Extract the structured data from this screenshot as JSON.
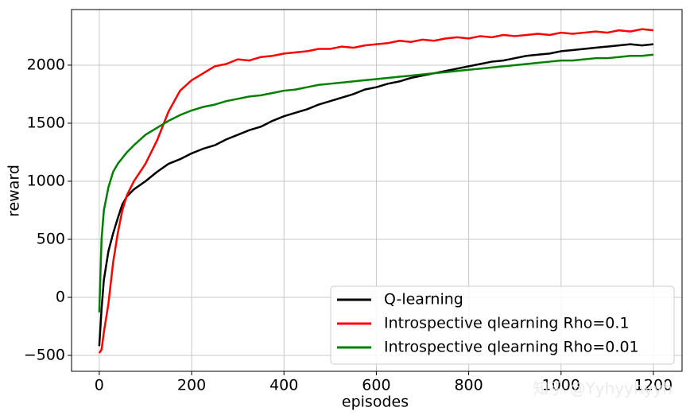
{
  "chart_data": {
    "type": "line",
    "xlabel": "episodes",
    "ylabel": "reward",
    "x": [
      0,
      5,
      10,
      20,
      30,
      40,
      50,
      60,
      75,
      100,
      125,
      150,
      175,
      200,
      225,
      250,
      275,
      300,
      325,
      350,
      375,
      400,
      425,
      450,
      475,
      500,
      525,
      550,
      575,
      600,
      625,
      650,
      675,
      700,
      725,
      750,
      775,
      800,
      825,
      850,
      875,
      900,
      925,
      950,
      975,
      1000,
      1025,
      1050,
      1075,
      1100,
      1125,
      1150,
      1175,
      1200
    ],
    "series": [
      {
        "name": "Q-learning",
        "color": "#000000",
        "values": [
          -420,
          -100,
          150,
          400,
          550,
          680,
          800,
          870,
          930,
          1000,
          1080,
          1150,
          1190,
          1240,
          1280,
          1310,
          1360,
          1400,
          1440,
          1470,
          1520,
          1560,
          1590,
          1620,
          1660,
          1690,
          1720,
          1750,
          1790,
          1810,
          1840,
          1860,
          1890,
          1910,
          1930,
          1950,
          1970,
          1990,
          2010,
          2030,
          2040,
          2060,
          2080,
          2090,
          2100,
          2120,
          2130,
          2140,
          2150,
          2160,
          2170,
          2180,
          2170,
          2180
        ]
      },
      {
        "name": "Introspective qlearning Rho=0.1",
        "color": "#ff0000",
        "values": [
          -480,
          -450,
          -300,
          -50,
          300,
          550,
          750,
          880,
          1000,
          1150,
          1350,
          1600,
          1780,
          1870,
          1930,
          1990,
          2010,
          2050,
          2040,
          2070,
          2080,
          2100,
          2110,
          2120,
          2140,
          2140,
          2160,
          2150,
          2170,
          2180,
          2190,
          2210,
          2200,
          2220,
          2210,
          2230,
          2240,
          2230,
          2250,
          2240,
          2260,
          2250,
          2260,
          2270,
          2260,
          2280,
          2270,
          2280,
          2290,
          2280,
          2300,
          2290,
          2310,
          2300
        ]
      },
      {
        "name": "Introspective qlearning Rho=0.01",
        "color": "#008000",
        "values": [
          -130,
          500,
          750,
          950,
          1080,
          1150,
          1200,
          1250,
          1310,
          1400,
          1460,
          1520,
          1570,
          1610,
          1640,
          1660,
          1690,
          1710,
          1730,
          1740,
          1760,
          1780,
          1790,
          1810,
          1830,
          1840,
          1850,
          1860,
          1870,
          1880,
          1890,
          1900,
          1910,
          1920,
          1930,
          1940,
          1950,
          1960,
          1970,
          1980,
          1990,
          2000,
          2010,
          2020,
          2030,
          2040,
          2040,
          2050,
          2060,
          2060,
          2070,
          2080,
          2080,
          2090
        ]
      }
    ],
    "xlim": [
      -60,
      1262
    ],
    "ylim": [
      -637,
      2479
    ],
    "xticks": [
      0,
      200,
      400,
      600,
      800,
      1000,
      1200
    ],
    "yticks": [
      {
        "value": -500,
        "label": "−500"
      },
      0,
      500,
      1000,
      1500,
      2000
    ],
    "grid": true,
    "legend": "lower right",
    "watermark": "知乎 @Yyhyyhyyh"
  }
}
